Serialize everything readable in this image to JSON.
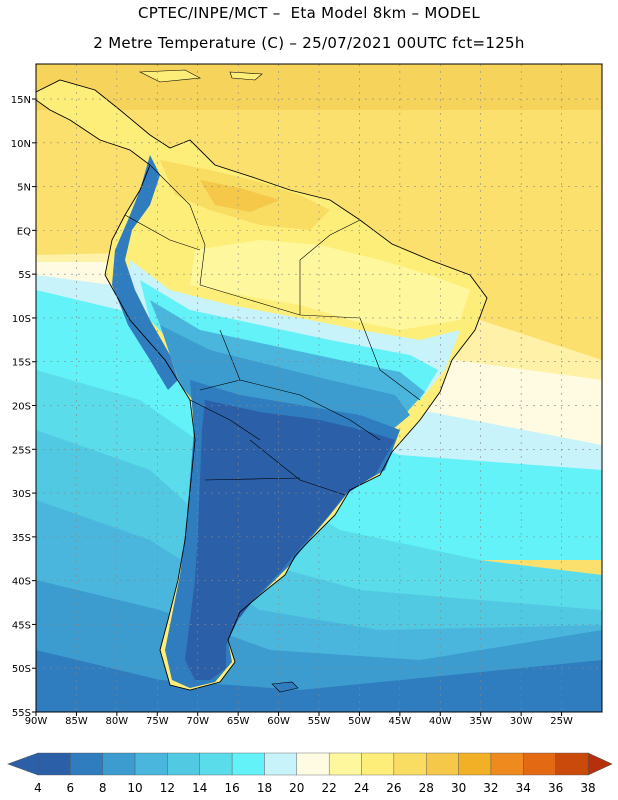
{
  "title_line1": "CPTEC/INPE/MCT –  Eta Model 8km – MODEL",
  "title_line2": "2 Metre Temperature (C) – 25/07/2021 00UTC fct=125h",
  "map": {
    "lon_range": [
      -90,
      -20
    ],
    "lat_range": [
      -55,
      19
    ],
    "lat_ticks": [
      {
        "value": 15,
        "label": "15N"
      },
      {
        "value": 10,
        "label": "10N"
      },
      {
        "value": 5,
        "label": "5N"
      },
      {
        "value": 0,
        "label": "EQ"
      },
      {
        "value": -5,
        "label": "5S"
      },
      {
        "value": -10,
        "label": "10S"
      },
      {
        "value": -15,
        "label": "15S"
      },
      {
        "value": -20,
        "label": "20S"
      },
      {
        "value": -25,
        "label": "25S"
      },
      {
        "value": -30,
        "label": "30S"
      },
      {
        "value": -35,
        "label": "35S"
      },
      {
        "value": -40,
        "label": "40S"
      },
      {
        "value": -45,
        "label": "45S"
      },
      {
        "value": -50,
        "label": "50S"
      },
      {
        "value": -55,
        "label": "55S"
      }
    ],
    "lon_ticks": [
      {
        "value": -90,
        "label": "90W"
      },
      {
        "value": -85,
        "label": "85W"
      },
      {
        "value": -80,
        "label": "80W"
      },
      {
        "value": -75,
        "label": "75W"
      },
      {
        "value": -70,
        "label": "70W"
      },
      {
        "value": -65,
        "label": "65W"
      },
      {
        "value": -60,
        "label": "60W"
      },
      {
        "value": -55,
        "label": "55W"
      },
      {
        "value": -50,
        "label": "50W"
      },
      {
        "value": -45,
        "label": "45W"
      },
      {
        "value": -40,
        "label": "40W"
      },
      {
        "value": -35,
        "label": "35W"
      },
      {
        "value": -30,
        "label": "30W"
      },
      {
        "value": -25,
        "label": "25W"
      }
    ]
  },
  "colorbar": {
    "labels": [
      "4",
      "6",
      "8",
      "10",
      "12",
      "14",
      "16",
      "18",
      "20",
      "22",
      "24",
      "26",
      "28",
      "30",
      "32",
      "34",
      "36",
      "38"
    ],
    "colors": [
      "#2b5fa8",
      "#2f7cbf",
      "#3c9ccf",
      "#4ab6dd",
      "#52c9e3",
      "#5bdcea",
      "#62f2f7",
      "#c9f3fb",
      "#fffbe3",
      "#fff79d",
      "#fdee7a",
      "#f9dc62",
      "#f5c84a",
      "#f2b026",
      "#ef8a1e",
      "#e36912",
      "#c94a0a",
      "#b5300b"
    ],
    "below_color": "#2b5fa8",
    "above_color": "#b5300b"
  }
}
